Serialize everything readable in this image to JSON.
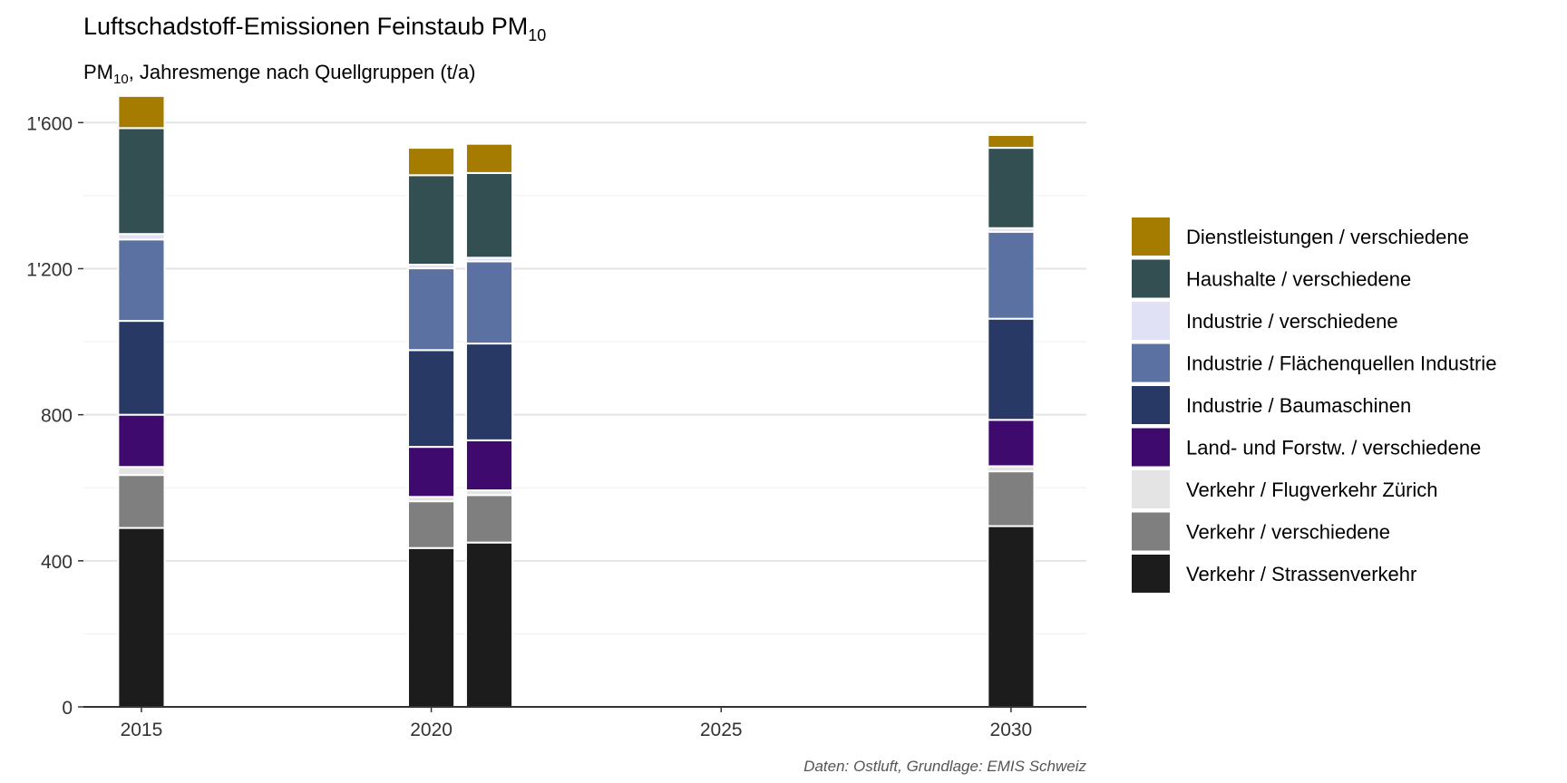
{
  "chart_data": {
    "type": "bar",
    "stacked": true,
    "title": "Luftschadstoff-Emissionen Feinstaub PM",
    "title_subscript": "10",
    "subtitle_prefix": "PM",
    "subtitle_subscript": "10",
    "subtitle_suffix": ", Jahresmenge nach Quellgruppen (t/a)",
    "caption": "Daten: Ostluft, Grundlage: EMIS Schweiz",
    "xlabel": "",
    "ylabel": "",
    "x_ticks": [
      "2015",
      "2020",
      "2025",
      "2030"
    ],
    "y_ticks": [
      "0",
      "400",
      "800",
      "1'200",
      "1'600"
    ],
    "xlim": [
      2014,
      2031.3
    ],
    "ylim": [
      0,
      1700
    ],
    "grid": true,
    "legend_position": "right",
    "x": [
      2015,
      2020,
      2021,
      2030
    ],
    "series": [
      {
        "name": "Verkehr / Strassenverkehr",
        "color": "#1c1c1c",
        "values": [
          490,
          435,
          450,
          495
        ]
      },
      {
        "name": "Verkehr / verschiedene",
        "color": "#7f7f7f",
        "values": [
          145,
          128,
          130,
          150
        ]
      },
      {
        "name": "Verkehr / Flugverkehr Zürich",
        "color": "#e4e4e4",
        "values": [
          22,
          12,
          13,
          14
        ]
      },
      {
        "name": "Land- und Forstw. / verschiedene",
        "color": "#3e0a6e",
        "values": [
          143,
          137,
          137,
          127
        ]
      },
      {
        "name": "Industrie / Baumaschinen",
        "color": "#293965",
        "values": [
          257,
          265,
          265,
          277
        ]
      },
      {
        "name": "Industrie / Flächenquellen Industrie",
        "color": "#5a71a1",
        "values": [
          223,
          224,
          225,
          238
        ]
      },
      {
        "name": "Industrie / verschiedene",
        "color": "#e1e1f5",
        "values": [
          15,
          10,
          10,
          10
        ]
      },
      {
        "name": "Haushalte / verschiedene",
        "color": "#344f52",
        "values": [
          290,
          245,
          232,
          220
        ]
      },
      {
        "name": "Dienstleistungen / verschiedene",
        "color": "#a67c00",
        "values": [
          88,
          75,
          80,
          35
        ]
      }
    ]
  }
}
